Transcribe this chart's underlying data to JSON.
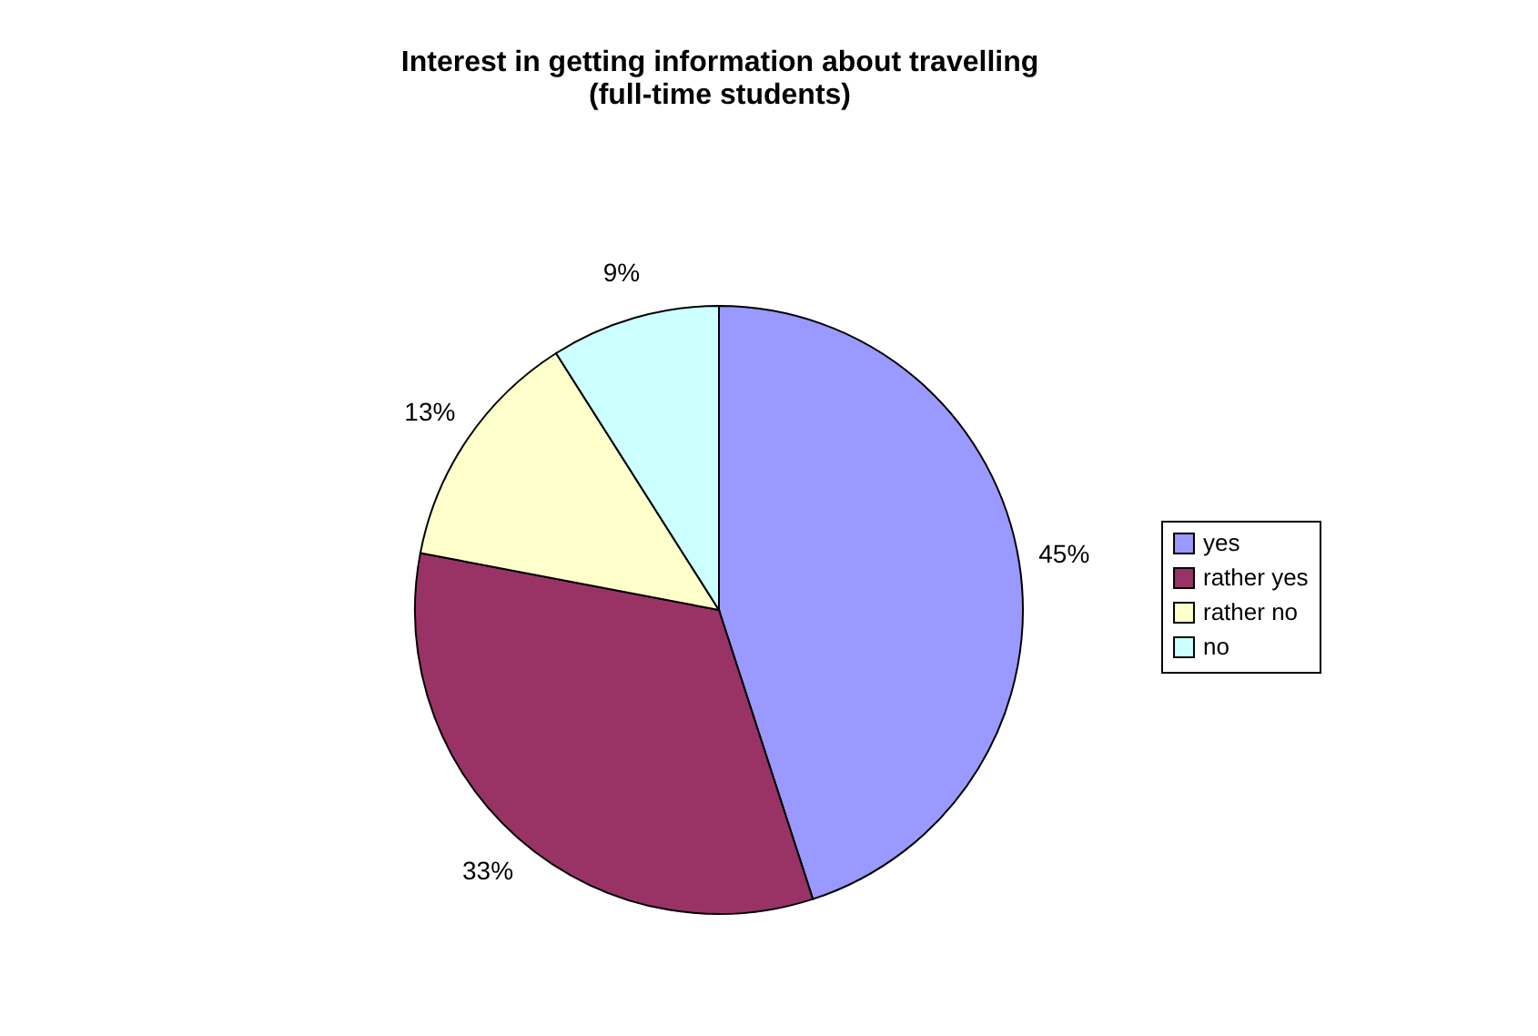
{
  "chart_data": {
    "type": "pie",
    "title": [
      "Interest in getting information about travelling",
      "(full-time students)"
    ],
    "categories": [
      "yes",
      "rather yes",
      "rather no",
      "no"
    ],
    "values": [
      45,
      33,
      13,
      9
    ],
    "colors": [
      "#9999ff",
      "#993366",
      "#ffffcc",
      "#ccffff"
    ],
    "value_labels": [
      "45%",
      "33%",
      "13%",
      "9%"
    ],
    "legend": "right"
  }
}
